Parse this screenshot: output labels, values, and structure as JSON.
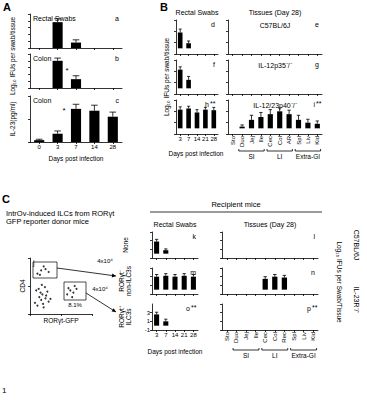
{
  "chart_data": [
    {
      "type": "bar",
      "label": "a",
      "title": "Rectal Swabs",
      "ylabel": "Log₁₀ IFUs per swab/tissue",
      "annotations": [
        "A"
      ],
      "categories": [
        "0",
        "3",
        "7",
        "14",
        "28"
      ],
      "values": [
        0,
        3.8,
        0.8,
        0,
        0
      ],
      "errors": [
        0,
        0.5,
        0.4,
        0,
        0
      ],
      "color": "#000000",
      "ylim": [
        0,
        5
      ],
      "yticks": [
        0,
        1,
        2,
        3,
        4,
        5
      ],
      "grid": false,
      "tick_labels": false
    },
    {
      "type": "bar",
      "label": "b",
      "title": "Colon",
      "annotations": [
        "*"
      ],
      "categories": [
        "0",
        "3",
        "7",
        "14",
        "28"
      ],
      "values": [
        0,
        4,
        1.3,
        0,
        0
      ],
      "errors": [
        0,
        0.4,
        0.5,
        0,
        0
      ],
      "color": "#000000",
      "ylim": [
        0,
        5
      ],
      "yticks": [
        0,
        1,
        2,
        3,
        4,
        5
      ],
      "grid": false,
      "tick_labels": false
    },
    {
      "type": "bar",
      "label": "c",
      "title": "Colon",
      "ylabel": "IL-23(pg/ml)",
      "xlabel": "Days post infection",
      "annotations": [
        "*"
      ],
      "categories": [
        "0",
        "3",
        "7",
        "14",
        "28"
      ],
      "values": [
        4,
        18,
        72,
        68,
        55
      ],
      "errors": [
        2,
        6,
        10,
        12,
        10
      ],
      "color": "#000000",
      "ylim": [
        0,
        100
      ],
      "yticks": [
        0,
        50,
        100
      ],
      "grid": false,
      "tick_labels": "x"
    },
    {
      "type": "bar",
      "label": "d",
      "title": "Rectal Swabs",
      "ylabel": "Log₁₀ IFUs per swab/tissue",
      "annotations": [
        "B"
      ],
      "categories": [
        "3",
        "7",
        "14",
        "21",
        "28"
      ],
      "values": [
        2.8,
        0.9,
        0,
        0,
        0
      ],
      "errors": [
        0.6,
        0.4,
        0,
        0,
        0
      ],
      "color": "#000000",
      "ylim": [
        -1,
        5
      ],
      "yticks": [
        -1,
        1,
        3,
        5
      ],
      "grid": false,
      "tick_labels": false
    },
    {
      "type": "bar",
      "label": "e",
      "title": "C57BL/6J",
      "annotations": [
        "Tissues (Day 28)"
      ],
      "categories": [
        "Sto",
        "Duo",
        "Jej",
        "Ile",
        "Cec",
        "Col",
        "AR",
        "Spl",
        "Liv",
        "Kid"
      ],
      "values": [
        0,
        0,
        0,
        0,
        0,
        0,
        0,
        0,
        0,
        0
      ],
      "errors": [
        0,
        0,
        0,
        0,
        0,
        0,
        0,
        0,
        0,
        0
      ],
      "color": "#000000",
      "ylim": [
        -1,
        5
      ],
      "yticks": [
        -1,
        1,
        3,
        5
      ],
      "grid": false,
      "tick_labels": false
    },
    {
      "type": "bar",
      "label": "f",
      "categories": [
        "3",
        "7",
        "14",
        "21",
        "28"
      ],
      "values": [
        3.3,
        1.5,
        0,
        0,
        0
      ],
      "errors": [
        0.5,
        0.6,
        0,
        0,
        0
      ],
      "color": "#000000",
      "ylim": [
        -1,
        5
      ],
      "yticks": [
        -1,
        1,
        3,
        5
      ],
      "grid": false,
      "tick_labels": false
    },
    {
      "type": "bar",
      "label": "g",
      "title": "IL-12p35⁻/⁻",
      "categories": [
        "Sto",
        "Duo",
        "Jej",
        "Ile",
        "Cec",
        "Col",
        "AR",
        "Spl",
        "Liv",
        "Kid"
      ],
      "values": [
        0,
        0,
        0,
        0,
        0,
        0,
        0,
        0,
        0,
        0
      ],
      "errors": [
        0,
        0,
        0,
        0,
        0,
        0,
        0,
        0,
        0,
        0
      ],
      "color": "#000000",
      "ylim": [
        -1,
        5
      ],
      "yticks": [
        -1,
        1,
        3,
        5
      ],
      "grid": false,
      "tick_labels": false
    },
    {
      "type": "bar",
      "label": "h",
      "xlabel": "Days post infection",
      "annotations": [
        "**"
      ],
      "categories": [
        "3",
        "7",
        "14",
        "21",
        "28"
      ],
      "values": [
        3.3,
        3.5,
        2.8,
        3.3,
        3.2
      ],
      "errors": [
        0.5,
        0.4,
        0.5,
        0.4,
        0.5
      ],
      "color": "#000000",
      "ylim": [
        -1,
        5
      ],
      "yticks": [
        -1,
        1,
        3,
        5
      ],
      "grid": false,
      "tick_labels": "x"
    },
    {
      "type": "bar",
      "label": "i",
      "title": "IL-12/23p40⁻/⁻",
      "annotations": [
        "**",
        "SI",
        "LI",
        "Extra-GI"
      ],
      "categories": [
        "Sto",
        "Duo",
        "Jej",
        "Ile",
        "Cec",
        "Col",
        "AR",
        "Spl",
        "Liv",
        "Kid"
      ],
      "values": [
        0,
        0.3,
        1.5,
        2,
        2.5,
        3,
        2.5,
        1.5,
        1,
        0.8
      ],
      "errors": [
        0,
        0.3,
        0.8,
        0.8,
        0.8,
        0.6,
        0.7,
        0.8,
        0.6,
        0.5
      ],
      "color": "#000000",
      "ylim": [
        -1,
        5
      ],
      "yticks": [
        -1,
        1,
        3,
        5
      ],
      "grid": false,
      "tick_labels": "x"
    },
    {
      "type": "scatter",
      "label": "j",
      "xlabel": "RORγt-GFP",
      "ylabel": "CD4",
      "annotations": [
        "C",
        "IntrOv-induced ILCs from RORγt GFP reporter donor mice",
        "8.1%",
        "4x10⁴",
        "4x10⁴",
        "1"
      ],
      "x": [
        8,
        12,
        15,
        18,
        20,
        22,
        25,
        28,
        30,
        14,
        17,
        21,
        26,
        33,
        10,
        19,
        24,
        60,
        65,
        70,
        75,
        68,
        72,
        62,
        12,
        18,
        25,
        30,
        22,
        16
      ],
      "y": [
        20,
        15,
        30,
        25,
        35,
        12,
        28,
        40,
        22,
        45,
        38,
        18,
        33,
        27,
        42,
        52,
        48,
        35,
        42,
        38,
        45,
        30,
        50,
        46,
        72,
        78,
        80,
        75,
        85,
        70
      ],
      "color": "#000000",
      "xlim": [
        0,
        100
      ],
      "ylim": [
        0,
        100
      ],
      "xticks": [
        0,
        50,
        100
      ],
      "yticks": [
        0,
        50,
        100
      ],
      "grid": false,
      "tick_labels": false
    },
    {
      "type": "bar",
      "label": "k",
      "title": "Rectal Swabs",
      "annotations": [
        "Recipient mice",
        "None"
      ],
      "categories": [
        "3",
        "7",
        "14",
        "21",
        "28"
      ],
      "values": [
        2.8,
        0.8,
        0,
        0,
        0
      ],
      "errors": [
        0.5,
        0.3,
        0,
        0,
        0
      ],
      "color": "#000000",
      "ylim": [
        -1,
        5
      ],
      "yticks": [
        -1,
        1,
        3,
        5
      ],
      "grid": false,
      "tick_labels": false
    },
    {
      "type": "bar",
      "label": "l",
      "title": "C57BL/6J",
      "ylabel": "Log₁₀ IFUs per Swab/Tissue",
      "annotations": [
        "Tissues (Day 28)"
      ],
      "categories": [
        "Sto",
        "Duo",
        "Jej",
        "Ile",
        "Cec",
        "Col",
        "Rec",
        "Spl",
        "Liv",
        "Kid"
      ],
      "values": [
        0,
        0,
        0,
        0,
        0,
        0,
        0,
        0,
        0,
        0
      ],
      "errors": [
        0,
        0,
        0,
        0,
        0,
        0,
        0,
        0,
        0,
        0
      ],
      "color": "#000000",
      "ylim": [
        -1,
        5
      ],
      "yticks": [
        -1,
        1,
        3,
        5
      ],
      "grid": false,
      "tick_labels": false
    },
    {
      "type": "bar",
      "label": "m",
      "annotations": [
        "RORγt⁻ non-ILC3s"
      ],
      "categories": [
        "3",
        "7",
        "14",
        "21",
        "28"
      ],
      "values": [
        3,
        3.2,
        3,
        3.2,
        3
      ],
      "errors": [
        0.5,
        0.5,
        0.5,
        0.5,
        0.5
      ],
      "color": "#000000",
      "ylim": [
        -1,
        5
      ],
      "yticks": [
        -1,
        1,
        3,
        5
      ],
      "grid": false,
      "tick_labels": false
    },
    {
      "type": "bar",
      "label": "n",
      "title": "IL-23R⁻/⁻",
      "categories": [
        "Sto",
        "Duo",
        "Jej",
        "Ile",
        "Cec",
        "Col",
        "Rec",
        "Spl",
        "Liv",
        "Kid"
      ],
      "values": [
        0,
        0,
        0,
        0,
        2.5,
        3,
        2.8,
        0,
        0,
        0
      ],
      "errors": [
        0,
        0,
        0,
        0,
        0.5,
        0.5,
        0.5,
        0,
        0,
        0
      ],
      "color": "#000000",
      "ylim": [
        -1,
        5
      ],
      "yticks": [
        -1,
        1,
        3,
        5
      ],
      "grid": false,
      "tick_labels": false
    },
    {
      "type": "bar",
      "label": "o",
      "xlabel": "Days post infection",
      "annotations": [
        "**",
        "RORγt⁺ ILC3s"
      ],
      "categories": [
        "3",
        "7",
        "14",
        "21",
        "28"
      ],
      "values": [
        2.6,
        1,
        0,
        0,
        0
      ],
      "errors": [
        0.5,
        0.5,
        0,
        0,
        0
      ],
      "color": "#000000",
      "ylim": [
        -1,
        5
      ],
      "yticks": [
        -1,
        1,
        3
      ],
      "grid": false,
      "tick_labels": true
    },
    {
      "type": "bar",
      "label": "p",
      "annotations": [
        "**",
        "SI",
        "LI",
        "Extra-GI"
      ],
      "categories": [
        "Sto",
        "Duo",
        "Jej",
        "Ile",
        "Cec",
        "Col",
        "Rec",
        "Spl",
        "Liv",
        "Kid"
      ],
      "values": [
        0,
        0,
        0,
        0,
        0,
        0,
        0,
        0,
        0,
        0
      ],
      "errors": [
        0,
        0,
        0,
        0,
        0,
        0,
        0,
        0,
        0,
        0
      ],
      "color": "#000000",
      "ylim": [
        -1,
        5
      ],
      "yticks": [
        -1,
        1,
        3,
        5
      ],
      "grid": false,
      "tick_labels": "x"
    }
  ]
}
